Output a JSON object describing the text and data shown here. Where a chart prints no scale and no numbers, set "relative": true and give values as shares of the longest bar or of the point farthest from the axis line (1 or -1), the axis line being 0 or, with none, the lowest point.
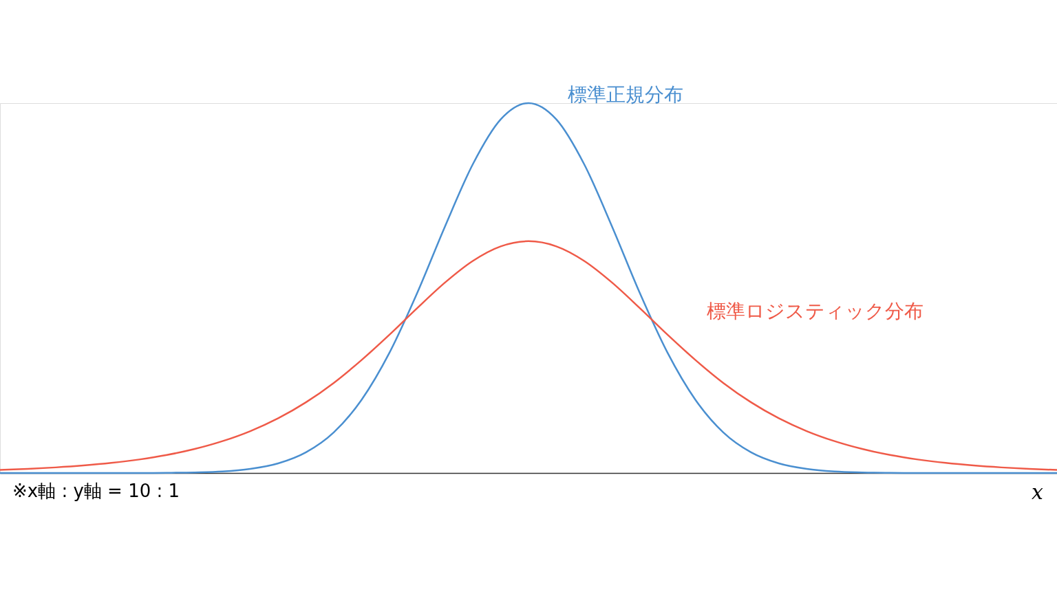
{
  "chart_data": {
    "type": "line",
    "relative": true,
    "xlabel": "x",
    "tick_labels": false,
    "grid": false,
    "legend": false,
    "marker": "none",
    "line_style": "solid",
    "annotations": [
      "※x軸 : y軸 = 10 : 1"
    ],
    "categories": [
      null,
      null,
      null,
      null,
      null,
      null,
      null,
      null,
      null,
      null,
      null,
      null,
      null,
      null,
      null,
      null,
      null,
      null,
      null,
      null,
      null,
      null,
      null,
      null,
      null,
      null,
      null,
      null,
      null,
      null,
      null,
      null,
      null,
      null,
      null,
      null,
      null,
      null,
      null
    ],
    "series": [
      {
        "name": "標準正規分布",
        "color": "#4a8fd0",
        "values": [
          0,
          0,
          0,
          0,
          0,
          0,
          0.0005,
          0.0015,
          0.004,
          0.011,
          0.026,
          0.056,
          0.11,
          0.198,
          0.325,
          0.487,
          0.667,
          0.835,
          0.956,
          1,
          0.956,
          0.835,
          0.667,
          0.487,
          0.325,
          0.198,
          0.11,
          0.056,
          0.026,
          0.011,
          0.004,
          0.0015,
          0.0005,
          0,
          0,
          0,
          0,
          0,
          0
        ]
      },
      {
        "name": "標準ロジスティック分布",
        "color": "#ef5a48",
        "values": [
          0.0083,
          0.0112,
          0.0151,
          0.0203,
          0.0272,
          0.0365,
          0.0487,
          0.0649,
          0.0861,
          0.1133,
          0.1479,
          0.1912,
          0.2437,
          0.3056,
          0.3738,
          0.4459,
          0.5151,
          0.5735,
          0.6128,
          0.6267,
          0.6128,
          0.5735,
          0.5151,
          0.4459,
          0.3738,
          0.3056,
          0.2437,
          0.1912,
          0.1479,
          0.1133,
          0.0861,
          0.0649,
          0.0487,
          0.0365,
          0.0272,
          0.0203,
          0.0151,
          0.0112,
          0.0083
        ]
      }
    ]
  }
}
